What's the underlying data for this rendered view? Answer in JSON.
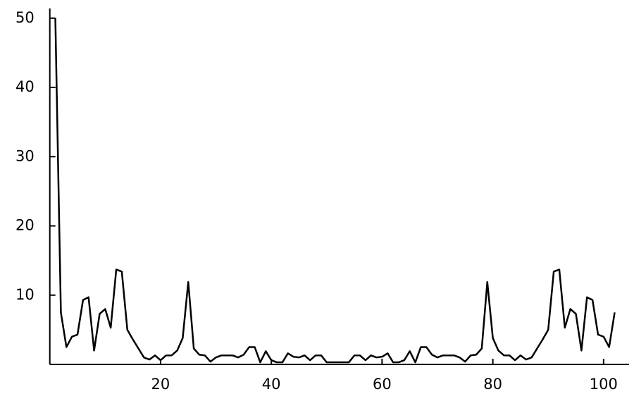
{
  "chart_data": {
    "type": "line",
    "x": [
      1,
      2,
      3,
      4,
      5,
      6,
      7,
      8,
      9,
      10,
      11,
      12,
      13,
      14,
      15,
      16,
      17,
      18,
      19,
      20,
      21,
      22,
      23,
      24,
      25,
      26,
      27,
      28,
      29,
      30,
      31,
      32,
      33,
      34,
      35,
      36,
      37,
      38,
      39,
      40,
      41,
      42,
      43,
      44,
      45,
      46,
      47,
      48,
      49,
      50,
      51,
      52,
      53,
      54,
      55,
      56,
      57,
      58,
      59,
      60,
      61,
      62,
      63,
      64,
      65,
      66,
      67,
      68,
      69,
      70,
      71,
      72,
      73,
      74,
      75,
      76,
      77,
      78,
      79,
      80,
      81,
      82,
      83,
      84,
      85,
      86,
      87,
      88,
      89,
      90,
      91,
      92,
      93,
      94,
      95,
      96,
      97,
      98,
      99,
      100,
      101,
      102
    ],
    "series": [
      {
        "color": "#000000",
        "values": [
          50,
          7.5,
          2.5,
          4,
          4.3,
          9.3,
          9.7,
          2,
          7.3,
          8,
          5.3,
          13.7,
          13.4,
          5,
          3.6,
          2.3,
          1,
          0.7,
          1.3,
          0.6,
          1.3,
          1.3,
          2,
          3.8,
          11.9,
          2.3,
          1.4,
          1.3,
          0.4,
          1,
          1.3,
          1.3,
          1.3,
          1,
          1.4,
          2.5,
          2.5,
          0.3,
          1.9,
          0.6,
          0.3,
          0.3,
          1.6,
          1.1,
          1,
          1.3,
          0.6,
          1.3,
          1.3,
          0.3,
          0.3,
          0.3,
          0.3,
          0.3,
          1.3,
          1.3,
          0.6,
          1.3,
          1,
          1.1,
          1.6,
          0.3,
          0.3,
          0.6,
          1.9,
          0.3,
          2.5,
          2.5,
          1.4,
          1,
          1.3,
          1.3,
          1.3,
          1,
          0.4,
          1.3,
          1.4,
          2.3,
          11.9,
          3.8,
          2,
          1.3,
          1.3,
          0.6,
          1.3,
          0.7,
          1,
          2.3,
          3.6,
          5,
          13.4,
          13.7,
          5.3,
          8,
          7.3,
          2,
          9.7,
          9.3,
          4.3,
          4,
          2.5,
          7.5
        ]
      }
    ],
    "xlim": [
      0,
      104.6
    ],
    "ylim": [
      0,
      51.4
    ],
    "xticks": [
      20,
      40,
      60,
      80,
      100
    ],
    "yticks": [
      10,
      20,
      30,
      40,
      50
    ]
  }
}
